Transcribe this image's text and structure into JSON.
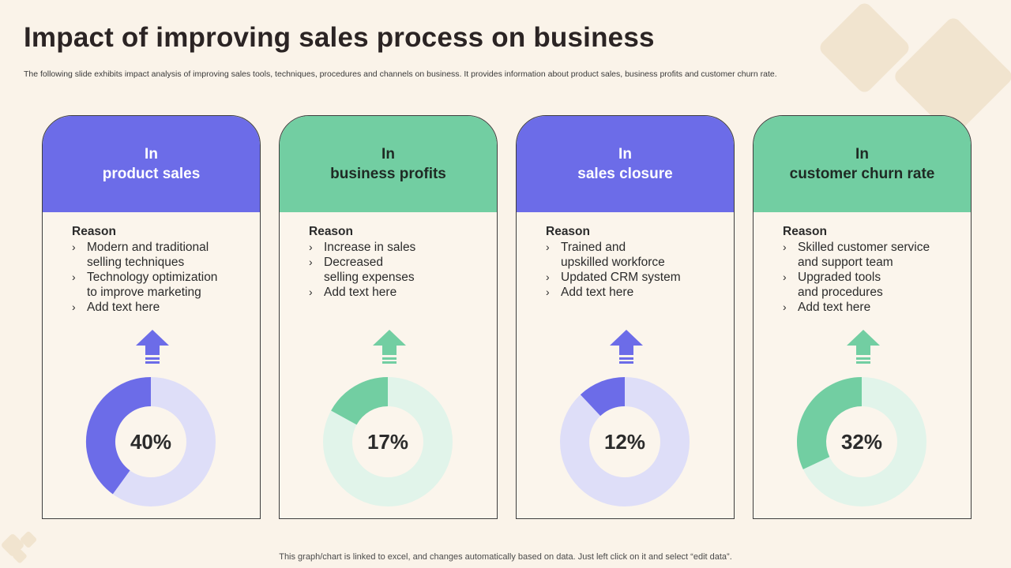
{
  "title": "Impact of improving sales process on business",
  "subtitle": "The following slide exhibits impact analysis of improving sales tools, techniques, procedures and channels on business. It provides information about product sales, business profits and customer churn rate.",
  "footer": "This graph/chart is linked to excel,  and changes automatically based on data. Just left click on it and select “edit data”.",
  "colors": {
    "purple": "#6C6CE8",
    "purple_light": "#DEDEF8",
    "green": "#72CEA2",
    "green_light": "#E1F4EA",
    "background": "#FAF3E9"
  },
  "cards": [
    {
      "head_line1": "In",
      "head_line2": "product sales",
      "reason_title": "Reason",
      "reasons": [
        "Modern and traditional\nselling techniques",
        "Technology  optimization\nto improve marketing",
        "Add text here"
      ],
      "percent_label": "40%",
      "icon": "up-arrow-icon"
    },
    {
      "head_line1": "In",
      "head_line2": "business profits",
      "reason_title": "Reason",
      "reasons": [
        "Increase  in sales",
        "Decreased\nselling expenses",
        "Add text here"
      ],
      "percent_label": "17%",
      "icon": "up-arrow-icon"
    },
    {
      "head_line1": "In",
      "head_line2": "sales closure",
      "reason_title": "Reason",
      "reasons": [
        "Trained and\nupskilled workforce",
        "Updated CRM system",
        "Add text here"
      ],
      "percent_label": "12%",
      "icon": "up-arrow-icon"
    },
    {
      "head_line1": "In",
      "head_line2": "customer churn rate",
      "reason_title": "Reason",
      "reasons": [
        "Skilled customer service\nand support team",
        "Upgraded tools\nand procedures",
        "Add text here"
      ],
      "percent_label": "32%",
      "icon": "up-arrow-icon"
    }
  ],
  "chart_data": [
    {
      "type": "pie",
      "categories": [
        "product sales",
        "remainder"
      ],
      "values": [
        40,
        60
      ],
      "color": "#6C6CE8",
      "track_color": "#DEDEF8"
    },
    {
      "type": "pie",
      "categories": [
        "business profits",
        "remainder"
      ],
      "values": [
        17,
        83
      ],
      "color": "#72CEA2",
      "track_color": "#E1F4EA"
    },
    {
      "type": "pie",
      "categories": [
        "sales closure",
        "remainder"
      ],
      "values": [
        12,
        88
      ],
      "color": "#6C6CE8",
      "track_color": "#DEDEF8"
    },
    {
      "type": "pie",
      "categories": [
        "customer churn rate",
        "remainder"
      ],
      "values": [
        32,
        68
      ],
      "color": "#72CEA2",
      "track_color": "#E1F4EA"
    }
  ]
}
